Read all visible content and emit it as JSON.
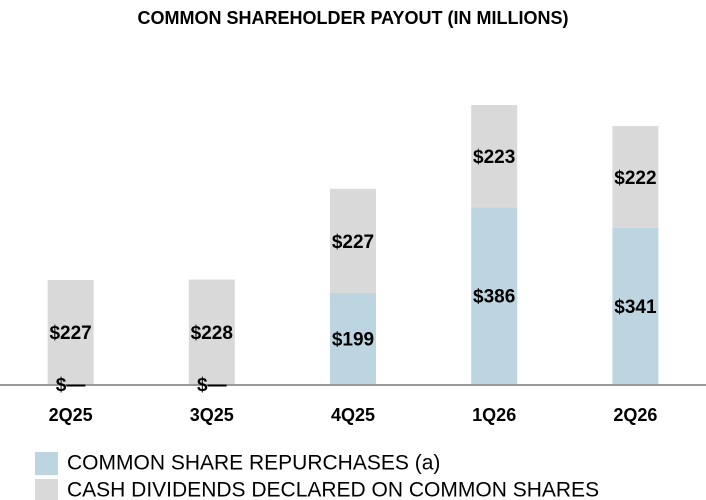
{
  "chart_data": {
    "type": "stacked_bar",
    "title": "COMMON SHAREHOLDER PAYOUT (IN MILLIONS)",
    "categories": [
      "2Q25",
      "3Q25",
      "4Q25",
      "1Q26",
      "2Q26"
    ],
    "series": [
      {
        "name": "COMMON SHARE REPURCHASES (a)",
        "color": "#bcd5e1",
        "values": [
          0,
          0,
          199,
          386,
          341
        ],
        "value_labels": [
          "$—",
          "$—",
          "$199",
          "$386",
          "$341"
        ]
      },
      {
        "name": "CASH DIVIDENDS DECLARED ON COMMON SHARES",
        "color": "#d9d9d9",
        "values": [
          227,
          228,
          227,
          223,
          222
        ],
        "value_labels": [
          "$227",
          "$228",
          "$227",
          "$223",
          "$222"
        ]
      }
    ]
  }
}
